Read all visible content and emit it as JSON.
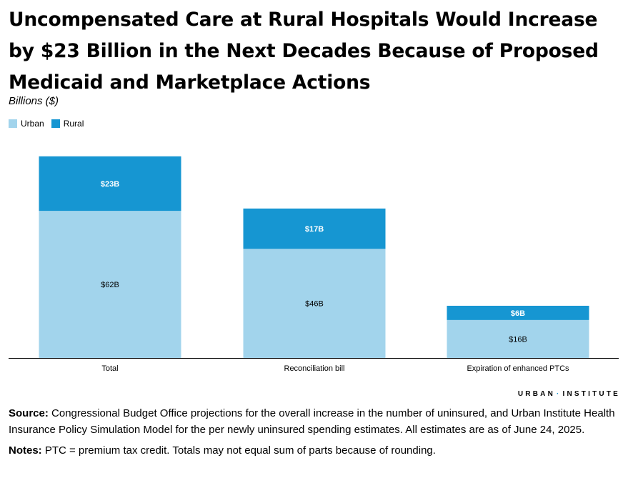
{
  "title": "Uncompensated Care at Rural Hospitals Would Increase by $23 Billion in the Next Decades Because of Proposed Medicaid and Marketplace Actions",
  "units_label": "Billions ($)",
  "legend": [
    {
      "label": "Urban",
      "color": "#a2d4ec"
    },
    {
      "label": "Rural",
      "color": "#1696d2"
    }
  ],
  "chart_data": {
    "type": "bar",
    "stacked": true,
    "categories": [
      "Total",
      "Reconciliation bill",
      "Expiration of enhanced PTCs"
    ],
    "series": [
      {
        "name": "Urban",
        "values": [
          62,
          46,
          16
        ],
        "labels": [
          "$62B",
          "$46B",
          "$16B"
        ],
        "color": "#a2d4ec"
      },
      {
        "name": "Rural",
        "values": [
          23,
          17,
          6
        ],
        "labels": [
          "$23B",
          "$17B",
          "$6B"
        ],
        "color": "#1696d2"
      }
    ],
    "ylim": [
      0,
      90
    ],
    "ylabel": "Billions ($)",
    "grid": false,
    "legend_position": "top-left"
  },
  "branding": {
    "left": "URBAN",
    "sep": "·",
    "right": "INSTITUTE"
  },
  "source": {
    "label": "Source:",
    "text": " Congressional Budget Office projections for the overall increase in the number of uninsured, and Urban Institute Health Insurance Policy Simulation Model for the per newly uninsured spending estimates. All estimates are as of June 24, 2025."
  },
  "notes": {
    "label": "Notes:",
    "text": " PTC = premium tax credit. Totals may not equal sum of parts because of rounding."
  }
}
